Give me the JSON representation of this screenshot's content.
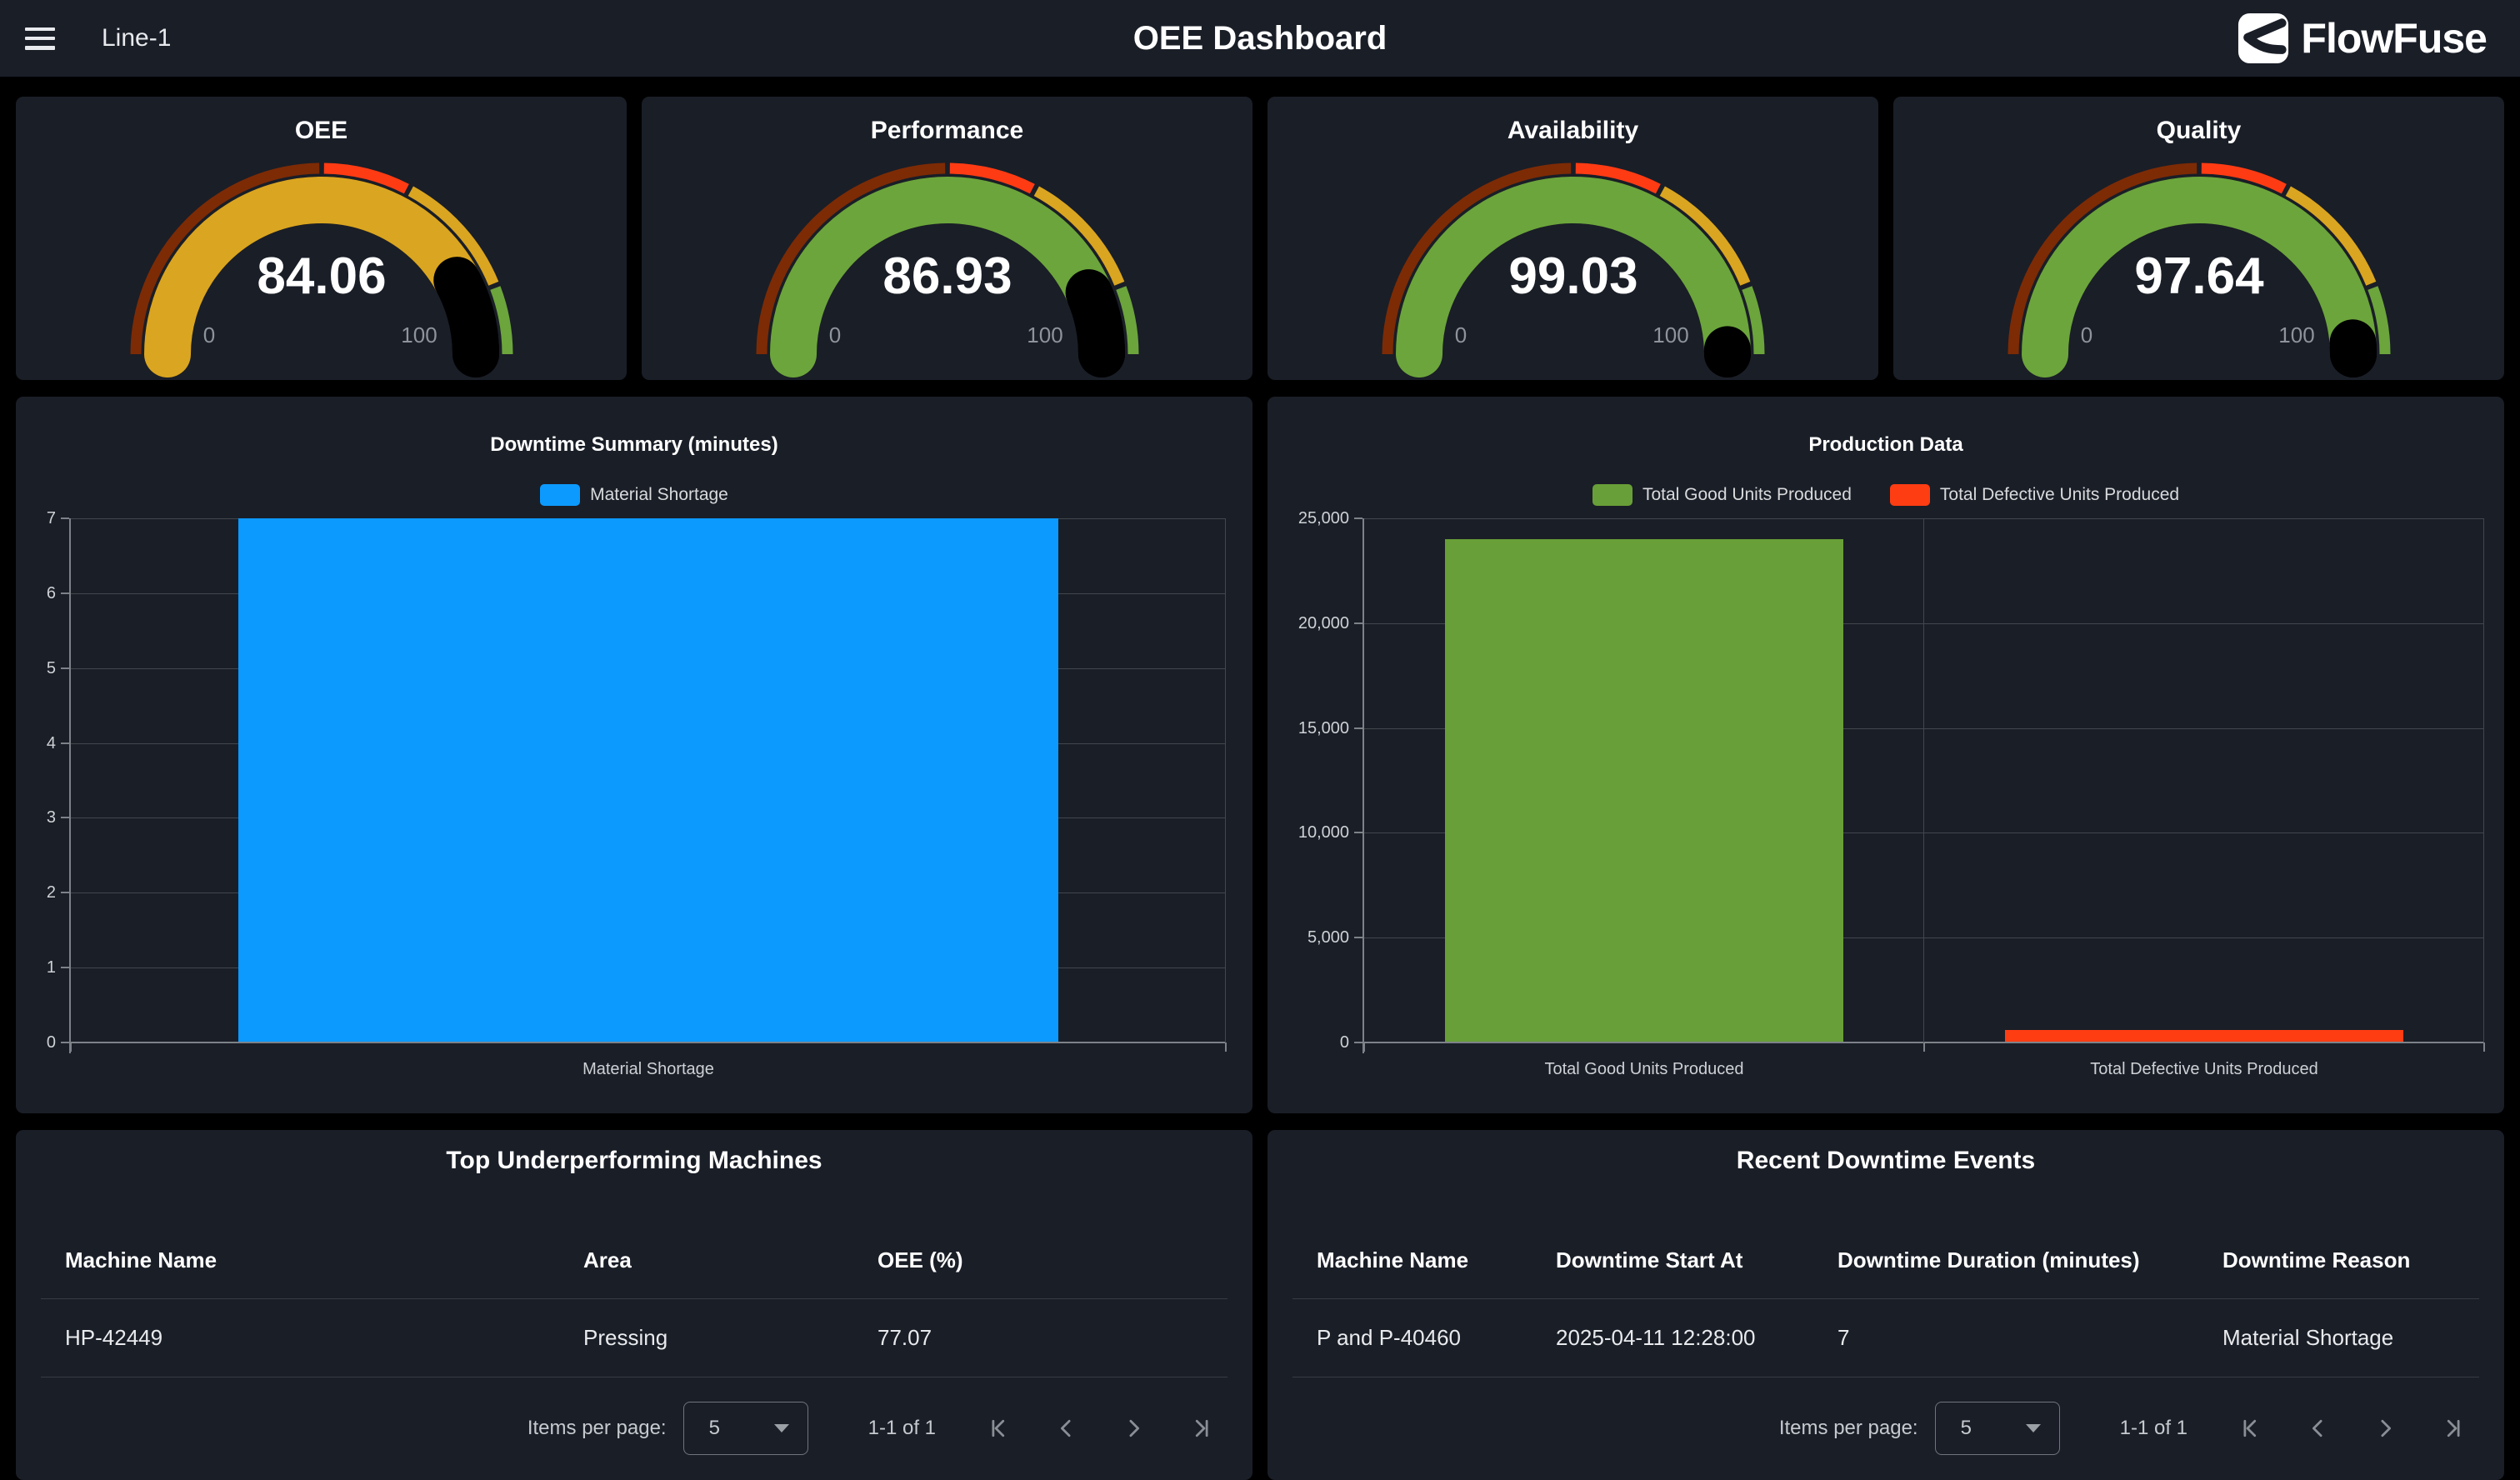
{
  "topbar": {
    "menu_label": "Line-1",
    "title": "OEE Dashboard",
    "brand": "FlowFuse"
  },
  "gauges": [
    {
      "title": "OEE",
      "value": 84.06,
      "min": "0",
      "max": "100",
      "value_color": "#DAA520"
    },
    {
      "title": "Performance",
      "value": 86.93,
      "min": "0",
      "max": "100",
      "value_color": "#6CA53C"
    },
    {
      "title": "Availability",
      "value": 99.03,
      "min": "0",
      "max": "100",
      "value_color": "#6CA53C"
    },
    {
      "title": "Quality",
      "value": 97.64,
      "min": "0",
      "max": "100",
      "value_color": "#6CA53C"
    }
  ],
  "gauge_segments": [
    {
      "from": 0,
      "to": 50,
      "color": "#7D2B05"
    },
    {
      "from": 50,
      "to": 65.5,
      "color": "#FF3B13"
    },
    {
      "from": 65.5,
      "to": 88,
      "color": "#DAA520"
    },
    {
      "from": 88,
      "to": 100,
      "color": "#6CA53C"
    }
  ],
  "chart_data": [
    {
      "type": "bar",
      "title": "Downtime Summary (minutes)",
      "categories": [
        "Material Shortage"
      ],
      "series": [
        {
          "name": "Material Shortage",
          "color": "#0D9AFF",
          "values": [
            7
          ]
        }
      ],
      "ylim": [
        0,
        7
      ],
      "yticks": [
        {
          "v": 0,
          "label": "0"
        },
        {
          "v": 1,
          "label": "1"
        },
        {
          "v": 2,
          "label": "2"
        },
        {
          "v": 3,
          "label": "3"
        },
        {
          "v": 4,
          "label": "4"
        },
        {
          "v": 5,
          "label": "5"
        },
        {
          "v": 6,
          "label": "6"
        },
        {
          "v": 7,
          "label": "7"
        }
      ],
      "legend_position": "top",
      "grid": true
    },
    {
      "type": "bar",
      "title": "Production Data",
      "categories": [
        "Total Good Units Produced",
        "Total Defective Units Produced"
      ],
      "series": [
        {
          "name": "Total Good Units Produced",
          "color": "#689F38",
          "values": [
            24000,
            null
          ]
        },
        {
          "name": "Total Defective Units Produced",
          "color": "#FF3D13",
          "values": [
            null,
            560
          ]
        }
      ],
      "ylim": [
        0,
        25000
      ],
      "yticks": [
        {
          "v": 0,
          "label": "0"
        },
        {
          "v": 5000,
          "label": "5,000"
        },
        {
          "v": 10000,
          "label": "10,000"
        },
        {
          "v": 15000,
          "label": "15,000"
        },
        {
          "v": 20000,
          "label": "20,000"
        },
        {
          "v": 25000,
          "label": "25,000"
        }
      ],
      "legend_position": "top",
      "grid": true
    }
  ],
  "tables": [
    {
      "title": "Top Underperforming Machines",
      "columns": [
        "Machine Name",
        "Area",
        "OEE (%)"
      ],
      "rows": [
        [
          "HP-42449",
          "Pressing",
          "77.07"
        ]
      ]
    },
    {
      "title": "Recent Downtime Events",
      "columns": [
        "Machine Name",
        "Downtime Start At",
        "Downtime Duration (minutes)",
        "Downtime Reason"
      ],
      "rows": [
        [
          "P and P-40460",
          "2025-04-11 12:28:00",
          "7",
          "Material Shortage"
        ]
      ]
    }
  ],
  "pagination": {
    "items_per_page_label": "Items per page:",
    "page_size": "5",
    "range": "1-1 of 1"
  }
}
